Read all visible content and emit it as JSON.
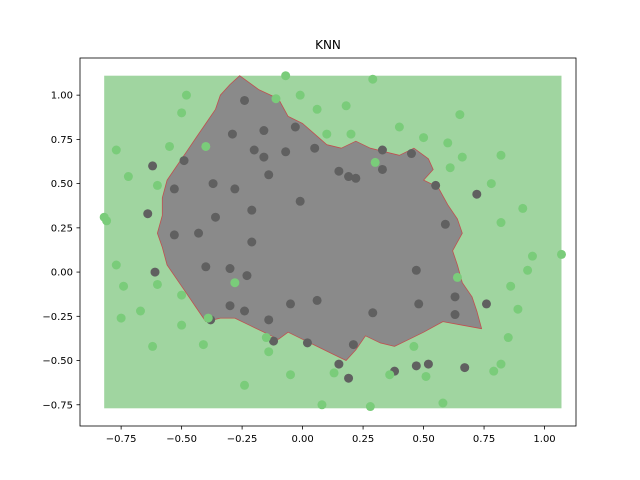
{
  "chart_data": {
    "type": "scatter",
    "title": "KNN",
    "xlabel": "",
    "ylabel": "",
    "xlim": [
      -0.92,
      1.13
    ],
    "ylim": [
      -0.87,
      1.21
    ],
    "x_ticks": [
      -0.75,
      -0.5,
      -0.25,
      0.0,
      0.25,
      0.5,
      0.75,
      1.0
    ],
    "x_tick_labels": [
      "−0.75",
      "−0.50",
      "−0.25",
      "0.00",
      "0.25",
      "0.50",
      "0.75",
      "1.00"
    ],
    "y_ticks": [
      -0.75,
      -0.5,
      -0.25,
      0.0,
      0.25,
      0.5,
      0.75,
      1.0
    ],
    "y_tick_labels": [
      "−0.75",
      "−0.50",
      "−0.25",
      "0.00",
      "0.25",
      "0.50",
      "0.75",
      "1.00"
    ],
    "grid": false,
    "decision_region": {
      "extent": {
        "x": [
          -0.82,
          1.07
        ],
        "y": [
          -0.77,
          1.11
        ]
      },
      "outer_color": "#a0d5a0",
      "inner_color": "#8a8a8a",
      "boundary_color": "#c05050",
      "inner_polygon": [
        [
          -0.26,
          1.11
        ],
        [
          -0.18,
          1.03
        ],
        [
          -0.1,
          0.98
        ],
        [
          -0.06,
          0.88
        ],
        [
          0.0,
          0.84
        ],
        [
          0.05,
          0.78
        ],
        [
          0.1,
          0.72
        ],
        [
          0.16,
          0.7
        ],
        [
          0.22,
          0.74
        ],
        [
          0.28,
          0.7
        ],
        [
          0.34,
          0.68
        ],
        [
          0.4,
          0.66
        ],
        [
          0.46,
          0.7
        ],
        [
          0.52,
          0.64
        ],
        [
          0.54,
          0.58
        ],
        [
          0.5,
          0.52
        ],
        [
          0.56,
          0.48
        ],
        [
          0.6,
          0.38
        ],
        [
          0.64,
          0.3
        ],
        [
          0.66,
          0.22
        ],
        [
          0.62,
          0.12
        ],
        [
          0.64,
          0.04
        ],
        [
          0.66,
          -0.06
        ],
        [
          0.7,
          -0.14
        ],
        [
          0.72,
          -0.22
        ],
        [
          0.74,
          -0.32
        ],
        [
          0.66,
          -0.3
        ],
        [
          0.58,
          -0.28
        ],
        [
          0.5,
          -0.34
        ],
        [
          0.44,
          -0.38
        ],
        [
          0.38,
          -0.42
        ],
        [
          0.32,
          -0.4
        ],
        [
          0.26,
          -0.36
        ],
        [
          0.22,
          -0.44
        ],
        [
          0.18,
          -0.5
        ],
        [
          0.12,
          -0.46
        ],
        [
          0.06,
          -0.42
        ],
        [
          0.0,
          -0.38
        ],
        [
          -0.06,
          -0.34
        ],
        [
          -0.1,
          -0.38
        ],
        [
          -0.16,
          -0.34
        ],
        [
          -0.22,
          -0.3
        ],
        [
          -0.28,
          -0.26
        ],
        [
          -0.34,
          -0.26
        ],
        [
          -0.4,
          -0.28
        ],
        [
          -0.44,
          -0.2
        ],
        [
          -0.48,
          -0.12
        ],
        [
          -0.52,
          -0.04
        ],
        [
          -0.56,
          0.04
        ],
        [
          -0.58,
          0.14
        ],
        [
          -0.6,
          0.22
        ],
        [
          -0.58,
          0.32
        ],
        [
          -0.58,
          0.42
        ],
        [
          -0.56,
          0.52
        ],
        [
          -0.52,
          0.6
        ],
        [
          -0.48,
          0.68
        ],
        [
          -0.44,
          0.76
        ],
        [
          -0.4,
          0.84
        ],
        [
          -0.36,
          0.92
        ],
        [
          -0.34,
          1.0
        ],
        [
          -0.3,
          1.06
        ]
      ]
    },
    "series": [
      {
        "color": "#606060",
        "points": [
          [
            -0.24,
            0.97
          ],
          [
            -0.03,
            0.82
          ],
          [
            -0.29,
            0.78
          ],
          [
            -0.16,
            0.8
          ],
          [
            -0.2,
            0.69
          ],
          [
            -0.16,
            0.65
          ],
          [
            -0.07,
            0.68
          ],
          [
            0.05,
            0.7
          ],
          [
            -0.49,
            0.63
          ],
          [
            -0.62,
            0.6
          ],
          [
            -0.37,
            0.5
          ],
          [
            -0.28,
            0.47
          ],
          [
            -0.14,
            0.55
          ],
          [
            -0.53,
            0.47
          ],
          [
            -0.64,
            0.33
          ],
          [
            -0.36,
            0.31
          ],
          [
            -0.21,
            0.35
          ],
          [
            -0.01,
            0.4
          ],
          [
            -0.43,
            0.22
          ],
          [
            -0.53,
            0.21
          ],
          [
            -0.21,
            0.17
          ],
          [
            -0.4,
            0.03
          ],
          [
            -0.3,
            0.02
          ],
          [
            -0.61,
            0.0
          ],
          [
            -0.23,
            -0.02
          ],
          [
            -0.3,
            -0.19
          ],
          [
            -0.38,
            -0.27
          ],
          [
            -0.24,
            -0.22
          ],
          [
            -0.14,
            -0.27
          ],
          [
            -0.05,
            -0.18
          ],
          [
            0.06,
            -0.16
          ],
          [
            -0.12,
            -0.39
          ],
          [
            0.02,
            -0.4
          ],
          [
            0.21,
            -0.41
          ],
          [
            0.15,
            -0.52
          ],
          [
            0.19,
            -0.6
          ],
          [
            0.29,
            -0.23
          ],
          [
            0.33,
            0.69
          ],
          [
            0.33,
            0.58
          ],
          [
            0.15,
            0.57
          ],
          [
            0.19,
            0.54
          ],
          [
            0.22,
            0.53
          ],
          [
            0.45,
            0.67
          ],
          [
            0.55,
            0.49
          ],
          [
            0.59,
            0.27
          ],
          [
            0.72,
            0.44
          ],
          [
            0.47,
            0.01
          ],
          [
            0.48,
            -0.18
          ],
          [
            0.63,
            -0.14
          ],
          [
            0.63,
            -0.24
          ],
          [
            0.76,
            -0.18
          ],
          [
            0.38,
            -0.56
          ],
          [
            0.47,
            -0.53
          ],
          [
            0.52,
            -0.52
          ],
          [
            0.67,
            -0.54
          ]
        ]
      },
      {
        "color": "#7acc7a",
        "points": [
          [
            -0.07,
            1.11
          ],
          [
            0.29,
            1.09
          ],
          [
            -0.48,
            1.0
          ],
          [
            -0.01,
            1.0
          ],
          [
            -0.5,
            0.9
          ],
          [
            -0.11,
            0.98
          ],
          [
            0.18,
            0.94
          ],
          [
            0.06,
            0.92
          ],
          [
            0.4,
            0.82
          ],
          [
            0.65,
            0.89
          ],
          [
            0.1,
            0.78
          ],
          [
            0.2,
            0.78
          ],
          [
            0.5,
            0.76
          ],
          [
            0.6,
            0.73
          ],
          [
            -0.4,
            0.71
          ],
          [
            -0.77,
            0.69
          ],
          [
            -0.55,
            0.71
          ],
          [
            0.66,
            0.65
          ],
          [
            0.82,
            0.66
          ],
          [
            0.3,
            0.62
          ],
          [
            0.61,
            0.59
          ],
          [
            -0.72,
            0.54
          ],
          [
            0.78,
            0.5
          ],
          [
            -0.6,
            0.49
          ],
          [
            -0.82,
            0.31
          ],
          [
            -0.81,
            0.29
          ],
          [
            0.91,
            0.36
          ],
          [
            0.82,
            0.28
          ],
          [
            -0.77,
            0.04
          ],
          [
            0.95,
            0.09
          ],
          [
            1.07,
            0.1
          ],
          [
            0.93,
            0.01
          ],
          [
            0.64,
            -0.03
          ],
          [
            -0.74,
            -0.08
          ],
          [
            -0.6,
            -0.07
          ],
          [
            0.86,
            -0.08
          ],
          [
            -0.5,
            -0.13
          ],
          [
            -0.28,
            -0.06
          ],
          [
            -0.67,
            -0.22
          ],
          [
            -0.75,
            -0.26
          ],
          [
            -0.5,
            -0.3
          ],
          [
            -0.39,
            -0.26
          ],
          [
            0.89,
            -0.21
          ],
          [
            0.85,
            -0.37
          ],
          [
            -0.15,
            -0.37
          ],
          [
            -0.62,
            -0.42
          ],
          [
            -0.41,
            -0.41
          ],
          [
            -0.14,
            -0.45
          ],
          [
            0.46,
            -0.42
          ],
          [
            0.36,
            -0.58
          ],
          [
            0.13,
            -0.57
          ],
          [
            -0.05,
            -0.58
          ],
          [
            0.51,
            -0.59
          ],
          [
            0.79,
            -0.56
          ],
          [
            0.82,
            -0.52
          ],
          [
            -0.24,
            -0.64
          ],
          [
            0.08,
            -0.75
          ],
          [
            0.28,
            -0.76
          ],
          [
            0.58,
            -0.74
          ]
        ]
      }
    ]
  }
}
